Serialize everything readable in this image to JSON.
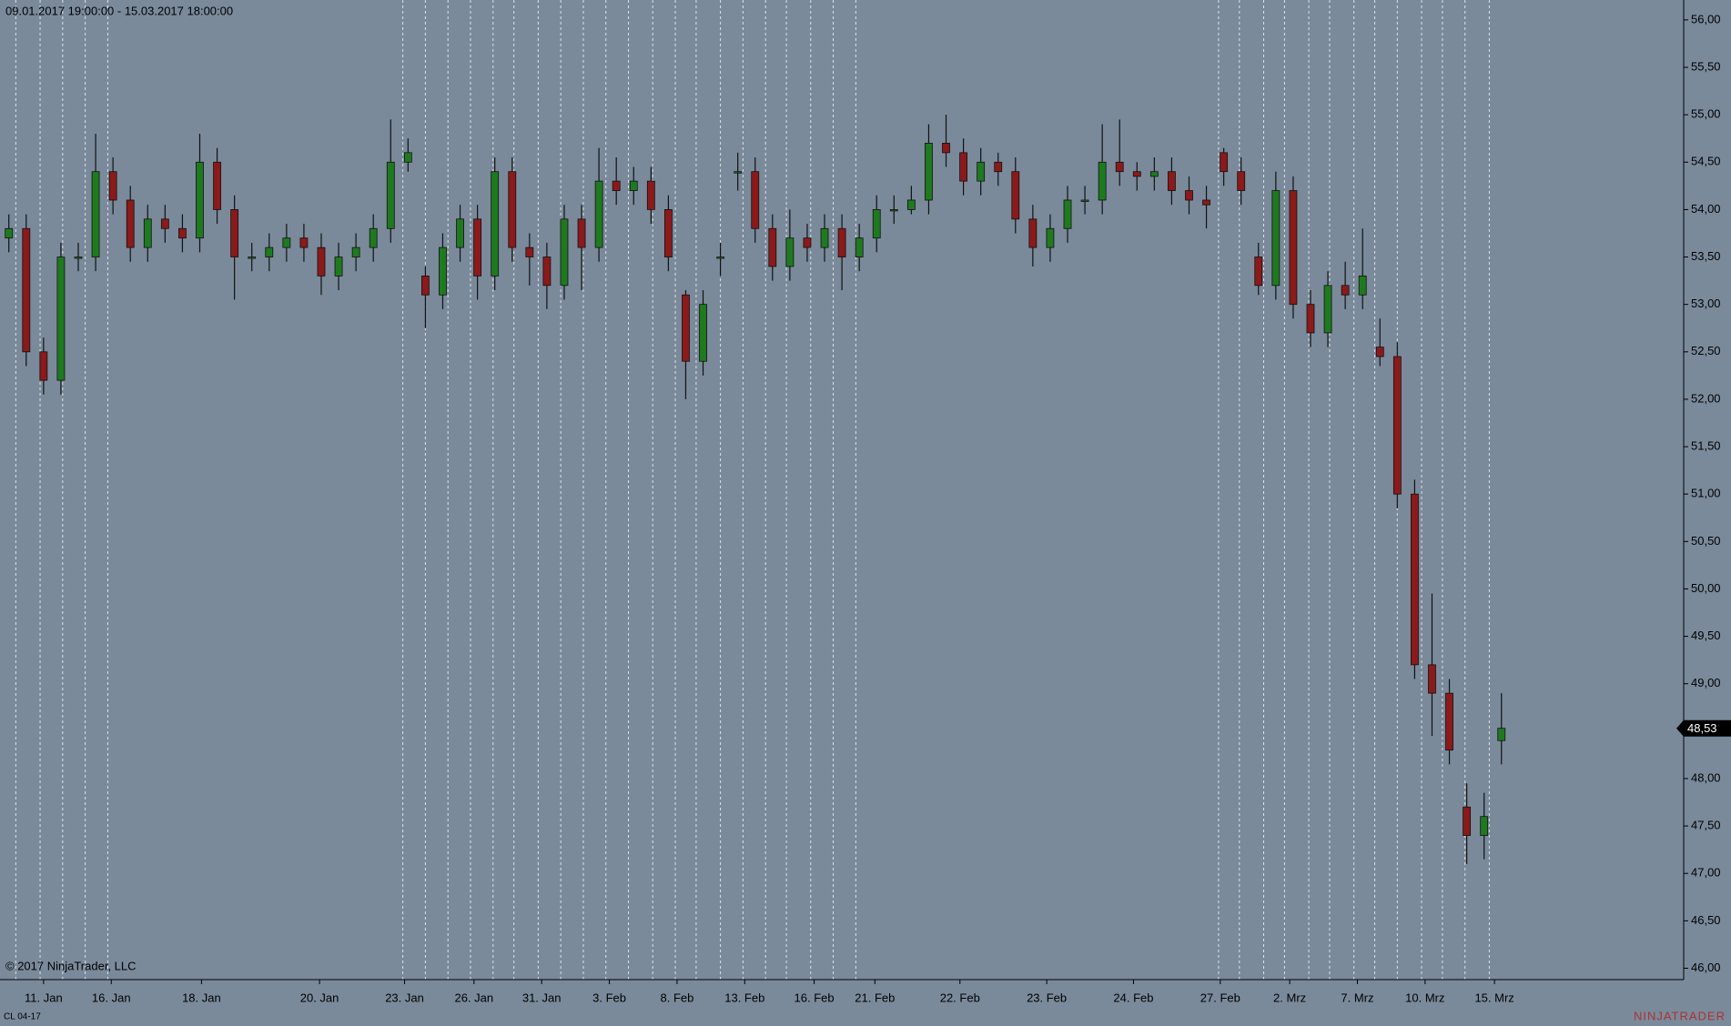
{
  "chart_data": {
    "type": "candlestick",
    "title": "09.01.2017 19:00:00 - 15.03.2017 18:00:00",
    "copyright": "© 2017 NinjaTrader, LLC",
    "instrument": "CL 04-17",
    "brand": "NINJATRADER",
    "up_color": "#1f7a1f",
    "down_color": "#8b1a1a",
    "wick_color": "#111111",
    "open": [
      53.7,
      53.8,
      52.5,
      52.2,
      53.5,
      53.5,
      54.4,
      54.1,
      53.6,
      53.9,
      53.8,
      53.7,
      54.5,
      54.0,
      53.5,
      53.5,
      53.6,
      53.7,
      53.6,
      53.3,
      53.5,
      53.6,
      53.8,
      54.5,
      53.3,
      53.1,
      53.6,
      53.9,
      53.3,
      54.4,
      53.6,
      53.5,
      53.2,
      53.9,
      53.6,
      54.3,
      54.2,
      54.3,
      54.0,
      53.1,
      52.4,
      53.5,
      54.4,
      54.4,
      53.8,
      53.4,
      53.7,
      53.6,
      53.8,
      53.5,
      53.7,
      54.0,
      54.0,
      54.1,
      54.7,
      54.6,
      54.3,
      54.5,
      54.4,
      53.9,
      53.6,
      53.8,
      54.1,
      54.1,
      54.5,
      54.4,
      54.35,
      54.4,
      54.2,
      54.1,
      54.6,
      54.4,
      53.5,
      53.2,
      54.2,
      53.0,
      52.7,
      53.2,
      53.1,
      52.55,
      52.45,
      51.0,
      49.2,
      48.9,
      47.7,
      47.4,
      48.4
    ],
    "high": [
      53.95,
      53.95,
      52.65,
      53.65,
      53.65,
      54.8,
      54.55,
      54.25,
      54.05,
      54.05,
      53.95,
      54.8,
      54.65,
      54.15,
      53.65,
      53.75,
      53.85,
      53.85,
      53.75,
      53.65,
      53.75,
      53.95,
      54.95,
      54.75,
      53.4,
      53.75,
      54.05,
      54.05,
      54.55,
      54.55,
      53.75,
      53.65,
      54.05,
      54.05,
      54.65,
      54.55,
      54.45,
      54.45,
      54.15,
      53.15,
      53.15,
      53.65,
      54.6,
      54.55,
      53.95,
      54.0,
      53.85,
      53.95,
      53.95,
      53.85,
      54.15,
      54.15,
      54.25,
      54.9,
      55.0,
      54.75,
      54.65,
      54.6,
      54.55,
      54.05,
      53.95,
      54.25,
      54.25,
      54.9,
      54.95,
      54.5,
      54.55,
      54.55,
      54.35,
      54.25,
      54.65,
      54.55,
      53.65,
      54.4,
      54.35,
      53.15,
      53.35,
      53.45,
      53.8,
      52.85,
      52.6,
      51.15,
      49.95,
      49.05,
      47.95,
      47.85,
      48.9
    ],
    "low": [
      53.55,
      52.35,
      52.05,
      52.05,
      53.35,
      53.35,
      53.95,
      53.45,
      53.45,
      53.65,
      53.55,
      53.55,
      53.85,
      53.05,
      53.35,
      53.35,
      53.45,
      53.45,
      53.1,
      53.15,
      53.35,
      53.45,
      53.65,
      54.4,
      52.75,
      52.95,
      53.45,
      53.05,
      53.15,
      53.45,
      53.2,
      52.95,
      53.05,
      53.15,
      53.45,
      54.05,
      54.05,
      53.85,
      53.35,
      52.0,
      52.25,
      53.3,
      54.2,
      53.65,
      53.25,
      53.25,
      53.45,
      53.45,
      53.15,
      53.35,
      53.55,
      53.85,
      53.95,
      53.95,
      54.45,
      54.15,
      54.15,
      54.25,
      53.75,
      53.4,
      53.45,
      53.65,
      53.95,
      53.95,
      54.25,
      54.2,
      54.2,
      54.05,
      53.95,
      53.8,
      54.25,
      54.05,
      53.1,
      53.05,
      52.85,
      52.55,
      52.55,
      52.95,
      52.95,
      52.35,
      50.85,
      49.05,
      48.45,
      48.15,
      47.1,
      47.15,
      48.15
    ],
    "close": [
      53.8,
      52.5,
      52.2,
      53.5,
      53.5,
      54.4,
      54.1,
      53.6,
      53.9,
      53.8,
      53.7,
      54.5,
      54.0,
      53.5,
      53.5,
      53.6,
      53.7,
      53.6,
      53.3,
      53.5,
      53.6,
      53.8,
      54.5,
      54.6,
      53.1,
      53.6,
      53.9,
      53.3,
      54.4,
      53.6,
      53.5,
      53.2,
      53.9,
      53.6,
      54.3,
      54.2,
      54.3,
      54.0,
      53.5,
      52.4,
      53.0,
      53.5,
      54.4,
      53.8,
      53.4,
      53.7,
      53.6,
      53.8,
      53.5,
      53.7,
      54.0,
      54.0,
      54.1,
      54.7,
      54.6,
      54.3,
      54.5,
      54.4,
      53.9,
      53.6,
      53.8,
      54.1,
      54.1,
      54.5,
      54.4,
      54.35,
      54.4,
      54.2,
      54.1,
      54.05,
      54.4,
      54.2,
      53.2,
      54.2,
      53.0,
      52.7,
      53.2,
      53.1,
      53.3,
      52.45,
      51.0,
      49.2,
      48.9,
      48.3,
      47.4,
      47.6,
      48.53
    ],
    "last_price": {
      "value": 48.53,
      "label": "48,53"
    },
    "xlim": [
      -0.51,
      96.5
    ],
    "ylim": [
      45.88,
      56.21
    ],
    "session_breaks": [
      0.4,
      1.8,
      3.1,
      4.4,
      5.7,
      22.7,
      24.0,
      25.3,
      26.6,
      27.9,
      29.1,
      30.5,
      31.8,
      33.1,
      34.4,
      35.7,
      37.1,
      38.4,
      39.6,
      41.0,
      42.3,
      43.6,
      44.8,
      46.2,
      47.5,
      48.8,
      69.7,
      70.9,
      72.3,
      73.5,
      74.9,
      76.1,
      77.5,
      78.7,
      80.0,
      81.4,
      82.6,
      83.9,
      85.3
    ],
    "xticks": [
      {
        "value": 2.0,
        "label": "11. Jan"
      },
      {
        "value": 5.9,
        "label": "16. Jan"
      },
      {
        "value": 11.1,
        "label": "18. Jan"
      },
      {
        "value": 17.9,
        "label": "20. Jan"
      },
      {
        "value": 22.8,
        "label": "23. Jan"
      },
      {
        "value": 26.8,
        "label": "26. Jan"
      },
      {
        "value": 30.7,
        "label": "31. Jan"
      },
      {
        "value": 34.6,
        "label": "3. Feb"
      },
      {
        "value": 38.5,
        "label": "8. Feb"
      },
      {
        "value": 42.4,
        "label": "13. Feb"
      },
      {
        "value": 46.4,
        "label": "16. Feb"
      },
      {
        "value": 49.9,
        "label": "21. Feb"
      },
      {
        "value": 54.8,
        "label": "22. Feb"
      },
      {
        "value": 59.8,
        "label": "23. Feb"
      },
      {
        "value": 64.8,
        "label": "24. Feb"
      },
      {
        "value": 69.8,
        "label": "27. Feb"
      },
      {
        "value": 73.8,
        "label": "2. Mrz"
      },
      {
        "value": 77.7,
        "label": "7. Mrz"
      },
      {
        "value": 81.6,
        "label": "10. Mrz"
      },
      {
        "value": 85.6,
        "label": "15. Mrz"
      }
    ],
    "yticks": [
      {
        "value": 46.0,
        "label": "46,00"
      },
      {
        "value": 46.5,
        "label": "46,50"
      },
      {
        "value": 47.0,
        "label": "47,00"
      },
      {
        "value": 47.5,
        "label": "47,50"
      },
      {
        "value": 48.0,
        "label": "48,00"
      },
      {
        "value": 48.5,
        "label": "48,50"
      },
      {
        "value": 49.0,
        "label": "49,00"
      },
      {
        "value": 49.5,
        "label": "49,50"
      },
      {
        "value": 50.0,
        "label": "50,00"
      },
      {
        "value": 50.5,
        "label": "50,50"
      },
      {
        "value": 51.0,
        "label": "51,00"
      },
      {
        "value": 51.5,
        "label": "51,50"
      },
      {
        "value": 52.0,
        "label": "52,00"
      },
      {
        "value": 52.5,
        "label": "52,50"
      },
      {
        "value": 53.0,
        "label": "53,00"
      },
      {
        "value": 53.5,
        "label": "53,50"
      },
      {
        "value": 54.0,
        "label": "54,00"
      },
      {
        "value": 54.5,
        "label": "54,50"
      },
      {
        "value": 55.0,
        "label": "55,00"
      },
      {
        "value": 55.5,
        "label": "55,50"
      },
      {
        "value": 56.0,
        "label": "56,00"
      }
    ]
  }
}
